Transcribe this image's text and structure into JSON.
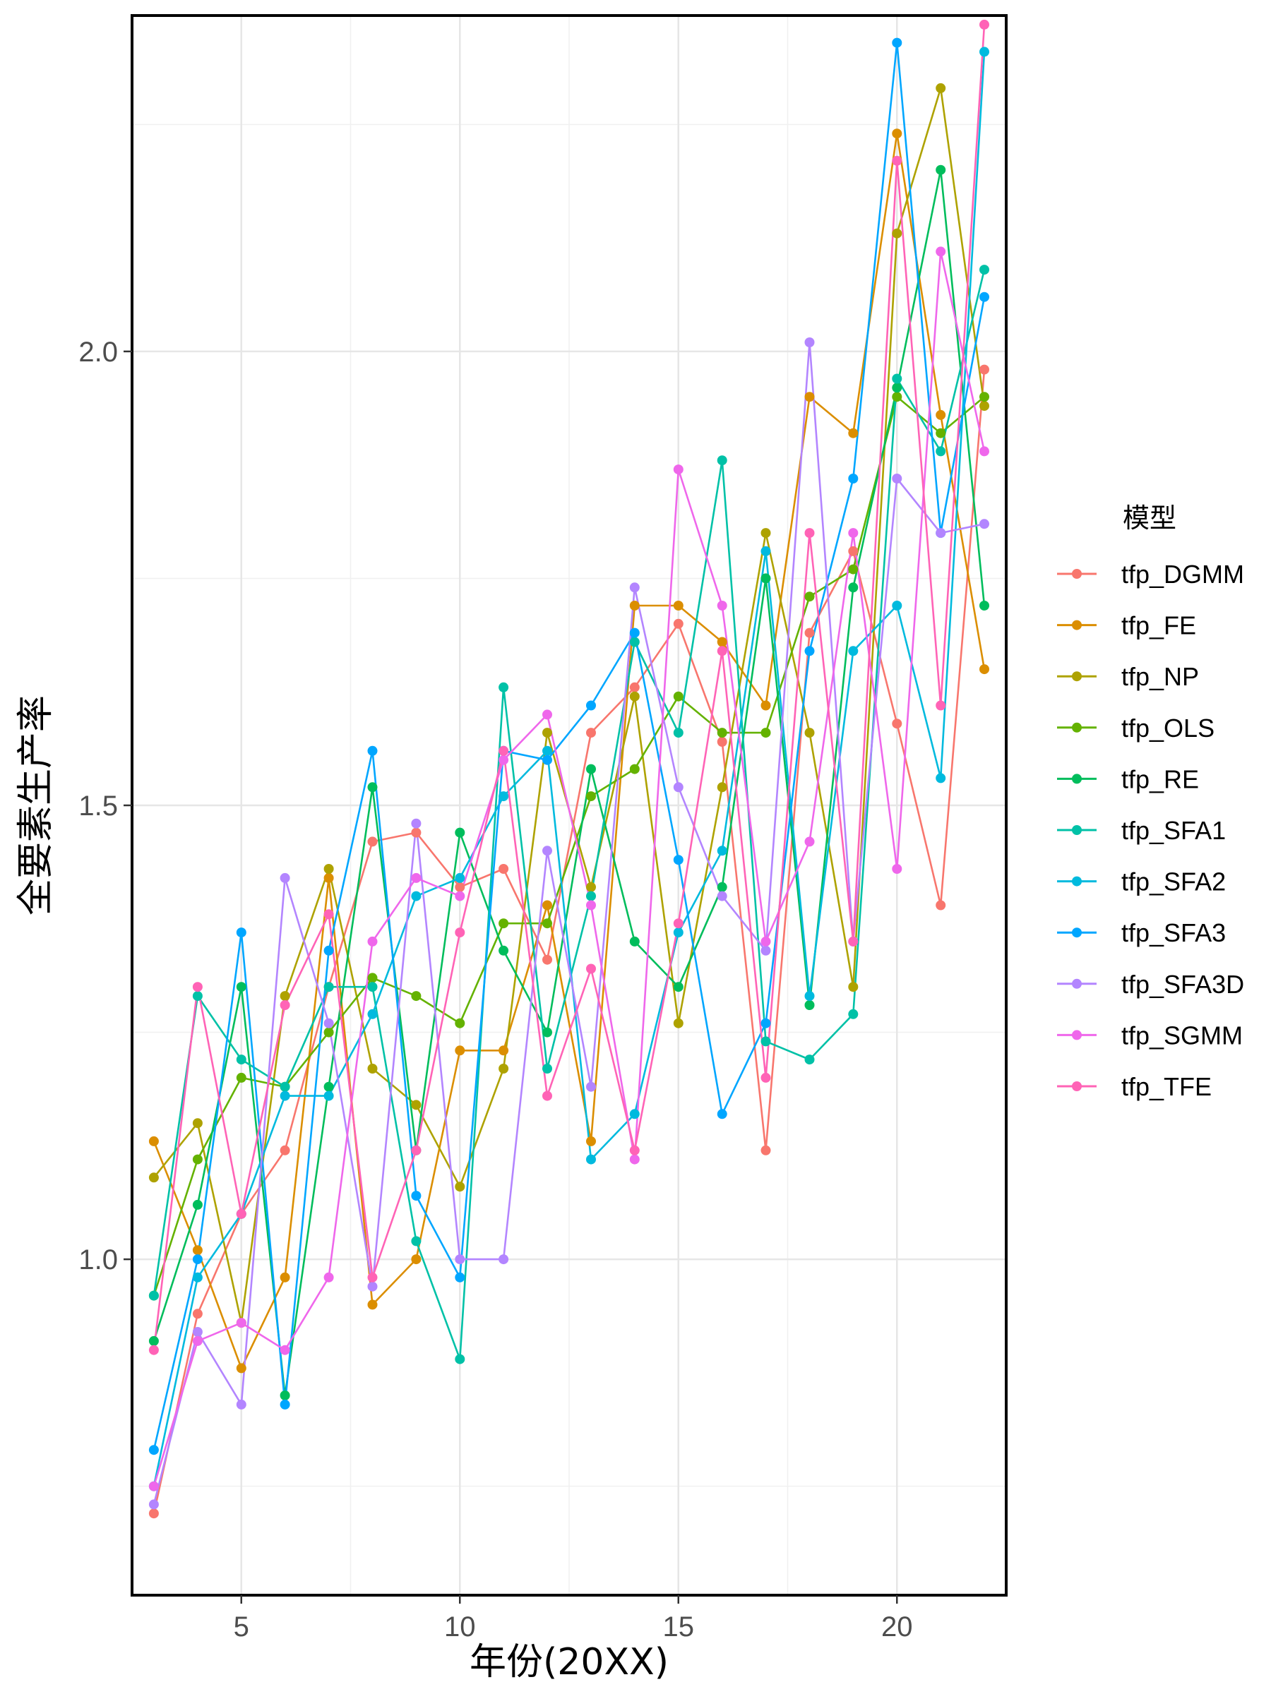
{
  "chart_data": {
    "type": "line",
    "xlabel": "年份(20XX)",
    "ylabel": "全要素生产率",
    "legend_title": "模型",
    "legend_position": "right",
    "grid": true,
    "xlim": [
      2.5,
      22.5
    ],
    "ylim": [
      0.63,
      2.37
    ],
    "x_ticks": [
      5,
      10,
      15,
      20
    ],
    "y_ticks": [
      1.0,
      1.5,
      2.0
    ],
    "x_tick_labels": [
      "5",
      "10",
      "15",
      "20"
    ],
    "y_tick_labels": [
      "1.0",
      "1.5",
      "2.0"
    ],
    "x": [
      3,
      4,
      5,
      6,
      7,
      8,
      9,
      10,
      11,
      12,
      13,
      14,
      15,
      16,
      17,
      18,
      19,
      20,
      21,
      22
    ],
    "series": [
      {
        "name": "tfp_DGMM",
        "color": "#F8766D",
        "values": [
          0.72,
          0.94,
          1.05,
          1.12,
          1.3,
          1.46,
          1.47,
          1.41,
          1.43,
          1.33,
          1.58,
          1.63,
          1.7,
          1.57,
          1.12,
          1.69,
          1.78,
          1.59,
          1.39,
          1.98
        ]
      },
      {
        "name": "tfp_FE",
        "color": "#DB8E00",
        "values": [
          1.13,
          1.01,
          0.88,
          0.98,
          1.42,
          0.95,
          1.0,
          1.23,
          1.23,
          1.39,
          1.13,
          1.72,
          1.72,
          1.68,
          1.61,
          1.95,
          1.91,
          2.24,
          1.93,
          1.65
        ]
      },
      {
        "name": "tfp_NP",
        "color": "#AEA200",
        "values": [
          1.09,
          1.15,
          0.93,
          1.29,
          1.43,
          1.21,
          1.17,
          1.08,
          1.21,
          1.58,
          1.41,
          1.62,
          1.26,
          1.52,
          1.8,
          1.58,
          1.3,
          2.13,
          2.29,
          1.94
        ]
      },
      {
        "name": "tfp_OLS",
        "color": "#64B200",
        "values": [
          0.96,
          1.11,
          1.2,
          1.19,
          1.25,
          1.31,
          1.29,
          1.26,
          1.37,
          1.37,
          1.51,
          1.54,
          1.62,
          1.58,
          1.58,
          1.73,
          1.76,
          1.95,
          1.91,
          1.95
        ]
      },
      {
        "name": "tfp_RE",
        "color": "#00BD5C",
        "values": [
          0.91,
          1.06,
          1.3,
          0.85,
          1.19,
          1.52,
          1.12,
          1.47,
          1.34,
          1.25,
          1.54,
          1.35,
          1.3,
          1.41,
          1.75,
          1.28,
          1.74,
          1.96,
          2.2,
          1.72
        ]
      },
      {
        "name": "tfp_SFA1",
        "color": "#00C1A7",
        "values": [
          0.96,
          1.29,
          1.22,
          1.19,
          1.3,
          1.3,
          1.02,
          0.89,
          1.63,
          1.21,
          1.4,
          1.68,
          1.58,
          1.88,
          1.24,
          1.22,
          1.27,
          1.97,
          1.89,
          2.09
        ]
      },
      {
        "name": "tfp_SFA2",
        "color": "#00BADE",
        "values": [
          0.75,
          0.98,
          1.05,
          1.18,
          1.18,
          1.27,
          1.4,
          1.42,
          1.51,
          1.56,
          1.11,
          1.16,
          1.36,
          1.45,
          1.78,
          1.29,
          1.67,
          1.72,
          1.53,
          2.33
        ]
      },
      {
        "name": "tfp_SFA3",
        "color": "#00A6FF",
        "values": [
          0.79,
          1.0,
          1.36,
          0.84,
          1.34,
          1.56,
          1.07,
          0.98,
          1.56,
          1.55,
          1.61,
          1.69,
          1.44,
          1.16,
          1.26,
          1.67,
          1.86,
          2.34,
          1.8,
          2.06
        ]
      },
      {
        "name": "tfp_SFA3D",
        "color": "#B385FF",
        "values": [
          0.73,
          0.92,
          0.84,
          1.42,
          1.26,
          0.97,
          1.48,
          1.0,
          1.0,
          1.45,
          1.19,
          1.74,
          1.52,
          1.4,
          1.34,
          2.01,
          1.35,
          1.86,
          1.8,
          1.81
        ]
      },
      {
        "name": "tfp_SGMM",
        "color": "#EF67EB",
        "values": [
          0.75,
          0.91,
          0.93,
          0.9,
          0.98,
          1.35,
          1.42,
          1.4,
          1.55,
          1.6,
          1.39,
          1.11,
          1.87,
          1.72,
          1.35,
          1.46,
          1.8,
          1.43,
          2.11,
          1.89
        ]
      },
      {
        "name": "tfp_TFE",
        "color": "#FF63B6",
        "values": [
          0.9,
          1.3,
          1.05,
          1.28,
          1.38,
          0.98,
          1.12,
          1.36,
          1.56,
          1.18,
          1.32,
          1.12,
          1.37,
          1.67,
          1.2,
          1.8,
          1.35,
          2.21,
          1.61,
          2.36
        ]
      }
    ]
  }
}
